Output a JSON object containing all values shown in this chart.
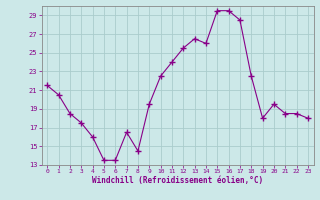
{
  "x": [
    0,
    1,
    2,
    3,
    4,
    5,
    6,
    7,
    8,
    9,
    10,
    11,
    12,
    13,
    14,
    15,
    16,
    17,
    18,
    19,
    20,
    21,
    22,
    23
  ],
  "y": [
    21.5,
    20.5,
    18.5,
    17.5,
    16.0,
    13.5,
    13.5,
    16.5,
    14.5,
    19.5,
    22.5,
    24.0,
    25.5,
    26.5,
    26.0,
    29.5,
    29.5,
    28.5,
    22.5,
    18.0,
    19.5,
    18.5,
    18.5,
    18.0
  ],
  "ylim": [
    13,
    29
  ],
  "yticks": [
    13,
    15,
    17,
    19,
    21,
    23,
    25,
    27,
    29
  ],
  "xticks": [
    0,
    1,
    2,
    3,
    4,
    5,
    6,
    7,
    8,
    9,
    10,
    11,
    12,
    13,
    14,
    15,
    16,
    17,
    18,
    19,
    20,
    21,
    22,
    23
  ],
  "xlabel": "Windchill (Refroidissement éolien,°C)",
  "line_color": "#880088",
  "marker": "+",
  "marker_size": 4,
  "bg_color": "#cce8e8",
  "grid_color": "#aacccc",
  "spine_color": "#888888",
  "tick_color": "#880088",
  "label_color": "#880088"
}
